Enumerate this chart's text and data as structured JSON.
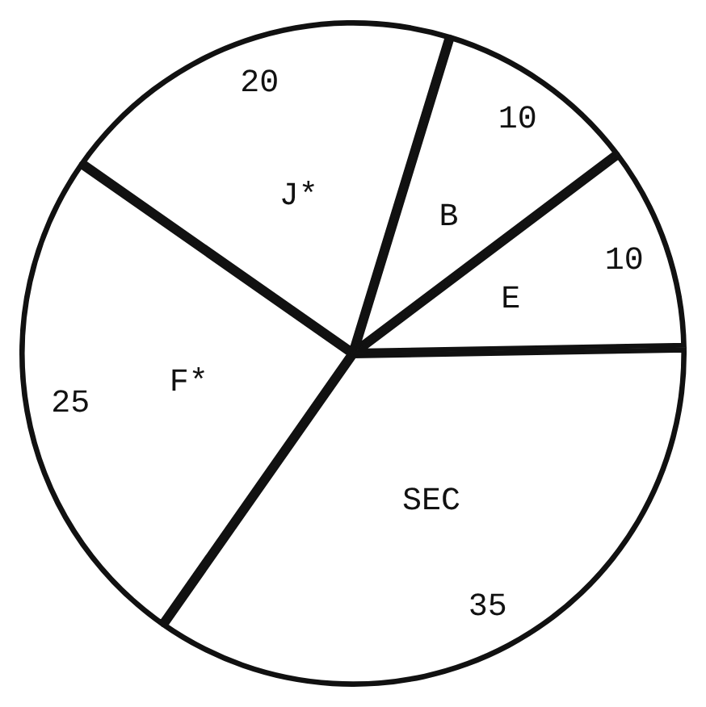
{
  "chart_data": {
    "type": "pie",
    "categories": [
      "B",
      "E",
      "SEC",
      "F*",
      "J*"
    ],
    "values": [
      10,
      10,
      35,
      25,
      20
    ],
    "colors": [
      "#ffffff",
      "#ffffff",
      "#ffffff",
      "#ffffff",
      "#ffffff"
    ],
    "data_labels": true,
    "legend": false
  }
}
